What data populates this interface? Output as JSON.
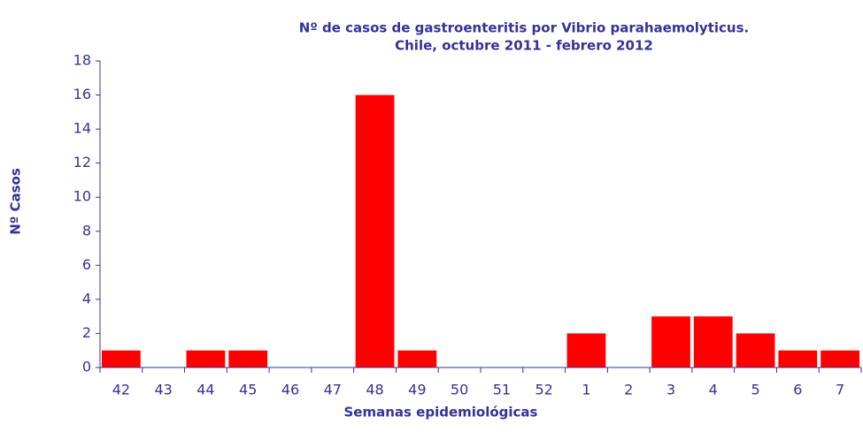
{
  "chart_data": {
    "type": "bar",
    "title": [
      "Nº de casos de gastroenteritis por Vibrio parahaemolyticus.",
      "Chile, octubre 2011 - febrero 2012"
    ],
    "x_label": "Semanas epidemiológicas",
    "y_label": "Nº Casos",
    "categories": [
      "42",
      "43",
      "44",
      "45",
      "46",
      "47",
      "48",
      "49",
      "50",
      "51",
      "52",
      "1",
      "2",
      "3",
      "4",
      "5",
      "6",
      "7"
    ],
    "values": [
      1,
      0,
      1,
      1,
      0,
      0,
      16,
      1,
      0,
      0,
      0,
      2,
      0,
      3,
      3,
      2,
      1,
      1
    ],
    "color": "#ff0000",
    "ylim": [
      0,
      18
    ],
    "yticks": [
      0,
      2,
      4,
      6,
      8,
      10,
      12,
      14,
      16,
      18
    ],
    "grid": false
  }
}
